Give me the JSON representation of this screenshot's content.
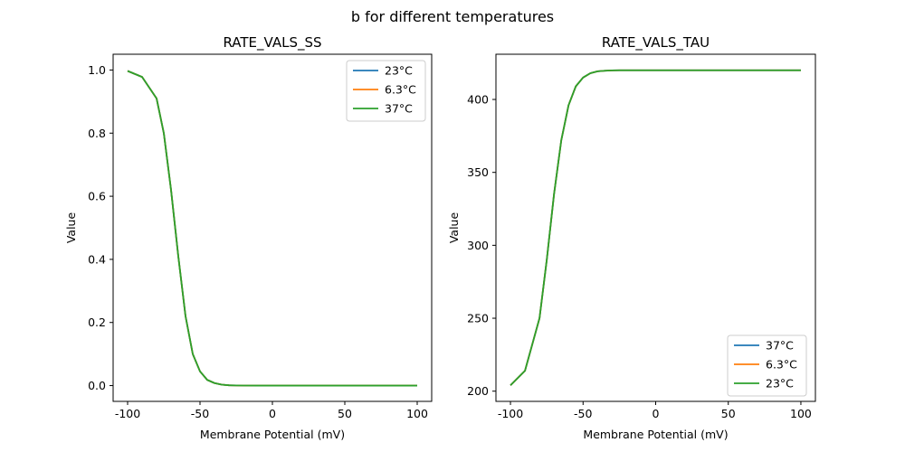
{
  "figure": {
    "suptitle": "b for different temperatures"
  },
  "chart_data": [
    {
      "type": "line",
      "title": "RATE_VALS_SS",
      "xlabel": "Membrane Potential (mV)",
      "ylabel": "Value",
      "xlim": [
        -110,
        110
      ],
      "ylim": [
        -0.05,
        1.05
      ],
      "xticks": [
        -100,
        -50,
        0,
        50,
        100
      ],
      "yticks": [
        0.0,
        0.2,
        0.4,
        0.6,
        0.8,
        1.0
      ],
      "ytick_labels": [
        "0.0",
        "0.2",
        "0.4",
        "0.6",
        "0.8",
        "1.0"
      ],
      "legend_position": "upper right",
      "grid": false,
      "x": [
        -100,
        -90,
        -80,
        -75,
        -70,
        -65,
        -60,
        -55,
        -50,
        -45,
        -40,
        -35,
        -30,
        -25,
        -20,
        -10,
        0,
        50,
        100
      ],
      "series": [
        {
          "name": "23°C",
          "color": "#1f77b4",
          "values": [
            0.997,
            0.978,
            0.91,
            0.8,
            0.62,
            0.41,
            0.22,
            0.1,
            0.045,
            0.018,
            0.008,
            0.003,
            0.001,
            0.0005,
            0.0002,
            0.0,
            0.0,
            0.0,
            0.0
          ]
        },
        {
          "name": "6.3°C",
          "color": "#ff7f0e",
          "values": [
            0.997,
            0.978,
            0.91,
            0.8,
            0.62,
            0.41,
            0.22,
            0.1,
            0.045,
            0.018,
            0.008,
            0.003,
            0.001,
            0.0005,
            0.0002,
            0.0,
            0.0,
            0.0,
            0.0
          ]
        },
        {
          "name": "37°C",
          "color": "#2ca02c",
          "values": [
            0.997,
            0.978,
            0.91,
            0.8,
            0.62,
            0.41,
            0.22,
            0.1,
            0.045,
            0.018,
            0.008,
            0.003,
            0.001,
            0.0005,
            0.0002,
            0.0,
            0.0,
            0.0,
            0.0
          ]
        }
      ]
    },
    {
      "type": "line",
      "title": "RATE_VALS_TAU",
      "xlabel": "Membrane Potential (mV)",
      "ylabel": "Value",
      "xlim": [
        -110,
        110
      ],
      "ylim": [
        193,
        431
      ],
      "xticks": [
        -100,
        -50,
        0,
        50,
        100
      ],
      "yticks": [
        200,
        250,
        300,
        350,
        400
      ],
      "ytick_labels": [
        "200",
        "250",
        "300",
        "350",
        "400"
      ],
      "legend_position": "lower right",
      "grid": false,
      "x": [
        -100,
        -90,
        -80,
        -75,
        -70,
        -65,
        -60,
        -55,
        -50,
        -45,
        -40,
        -35,
        -30,
        -25,
        -20,
        -10,
        0,
        50,
        100
      ],
      "series": [
        {
          "name": "37°C",
          "color": "#1f77b4",
          "values": [
            204,
            214,
            250,
            290,
            335,
            372,
            396,
            409,
            415,
            418,
            419.3,
            419.7,
            419.9,
            420,
            420,
            420,
            420,
            420,
            420
          ]
        },
        {
          "name": "6.3°C",
          "color": "#ff7f0e",
          "values": [
            204,
            214,
            250,
            290,
            335,
            372,
            396,
            409,
            415,
            418,
            419.3,
            419.7,
            419.9,
            420,
            420,
            420,
            420,
            420,
            420
          ]
        },
        {
          "name": "23°C",
          "color": "#2ca02c",
          "values": [
            204,
            214,
            250,
            290,
            335,
            372,
            396,
            409,
            415,
            418,
            419.3,
            419.7,
            419.9,
            420,
            420,
            420,
            420,
            420,
            420
          ]
        }
      ]
    }
  ]
}
